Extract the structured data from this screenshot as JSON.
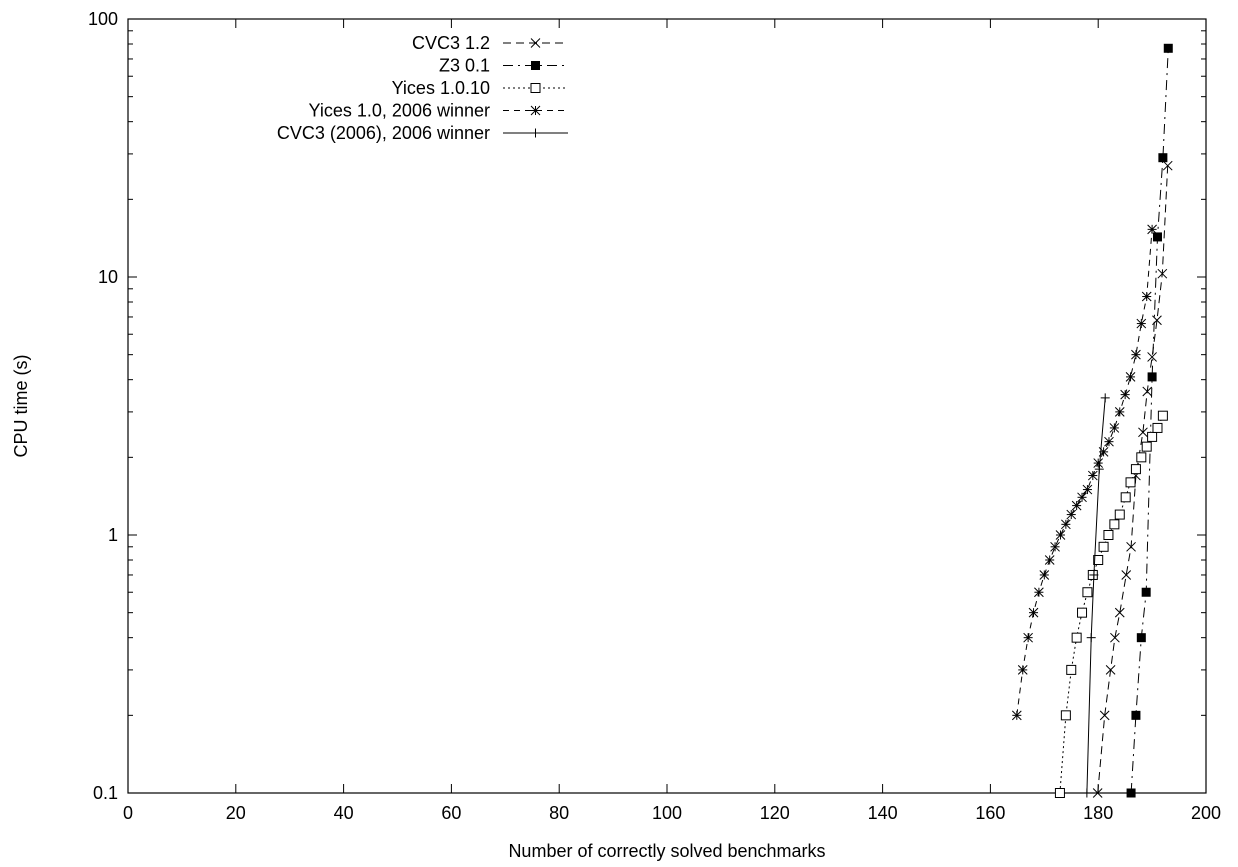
{
  "chart_data": {
    "type": "line",
    "title": "",
    "xlabel": "Number of correctly solved benchmarks",
    "ylabel": "CPU time (s)",
    "xlim": [
      0,
      200
    ],
    "ylim": [
      0.1,
      100
    ],
    "yscale": "log",
    "grid": false,
    "legend_position": "top-left",
    "x_ticks": [
      0,
      20,
      40,
      60,
      80,
      100,
      120,
      140,
      160,
      180,
      200
    ],
    "x_tick_labels": [
      "0",
      "20",
      "40",
      "60",
      "80",
      "100",
      "120",
      "140",
      "160",
      "180",
      "200"
    ],
    "y_ticks": [
      0.1,
      1,
      10,
      100
    ],
    "y_tick_labels": [
      "0.1",
      "1",
      "10",
      "100"
    ],
    "series": [
      {
        "name": "CVC3 1.2",
        "dash": "8,5",
        "marker": "x",
        "points": [
          [
            179.9,
            0.1
          ],
          [
            181.2,
            0.2
          ],
          [
            182.3,
            0.3
          ],
          [
            183.1,
            0.4
          ],
          [
            184.0,
            0.5
          ],
          [
            185.2,
            0.7
          ],
          [
            186.1,
            0.9
          ],
          [
            187.0,
            1.7
          ],
          [
            188.3,
            2.5
          ],
          [
            189.1,
            3.6
          ],
          [
            190.0,
            4.9
          ],
          [
            190.9,
            6.8
          ],
          [
            191.9,
            10.3
          ],
          [
            192.9,
            27.0
          ]
        ]
      },
      {
        "name": "Z3 0.1",
        "dash": "10,5,2,5",
        "marker": "filled-square",
        "points": [
          [
            186.1,
            0.1
          ],
          [
            187.0,
            0.2
          ],
          [
            188.0,
            0.4
          ],
          [
            188.9,
            0.6
          ],
          [
            190.0,
            4.1
          ],
          [
            191.0,
            14.3
          ],
          [
            192.0,
            29.0
          ],
          [
            193.0,
            77.0
          ]
        ]
      },
      {
        "name": "Yices 1.0.10",
        "dash": "2,3",
        "marker": "open-square",
        "points": [
          [
            172.9,
            0.1
          ],
          [
            174.0,
            0.2
          ],
          [
            175.0,
            0.3
          ],
          [
            176.0,
            0.4
          ],
          [
            177.0,
            0.5
          ],
          [
            178.0,
            0.6
          ],
          [
            179.0,
            0.7
          ],
          [
            180.0,
            0.8
          ],
          [
            181.0,
            0.9
          ],
          [
            181.9,
            1.0
          ],
          [
            183.0,
            1.1
          ],
          [
            184.0,
            1.2
          ],
          [
            185.1,
            1.4
          ],
          [
            186.0,
            1.6
          ],
          [
            187.0,
            1.8
          ],
          [
            188.0,
            2.0
          ],
          [
            189.0,
            2.2
          ],
          [
            190.0,
            2.4
          ],
          [
            191.0,
            2.6
          ],
          [
            192.0,
            2.9
          ]
        ]
      },
      {
        "name": "Yices 1.0, 2006 winner",
        "dash": "6,5",
        "marker": "star",
        "points": [
          [
            164.9,
            0.2
          ],
          [
            166.0,
            0.3
          ],
          [
            167.0,
            0.4
          ],
          [
            168.0,
            0.5
          ],
          [
            169.0,
            0.6
          ],
          [
            170.0,
            0.7
          ],
          [
            171.0,
            0.8
          ],
          [
            172.0,
            0.9
          ],
          [
            173.0,
            1.0
          ],
          [
            174.0,
            1.1
          ],
          [
            175.0,
            1.2
          ],
          [
            176.0,
            1.3
          ],
          [
            177.0,
            1.4
          ],
          [
            178.0,
            1.5
          ],
          [
            179.0,
            1.7
          ],
          [
            180.0,
            1.9
          ],
          [
            181.0,
            2.1
          ],
          [
            182.0,
            2.3
          ],
          [
            183.0,
            2.6
          ],
          [
            184.0,
            3.0
          ],
          [
            185.0,
            3.5
          ],
          [
            186.0,
            4.1
          ],
          [
            187.0,
            5.0
          ],
          [
            188.0,
            6.6
          ],
          [
            189.0,
            8.4
          ],
          [
            190.0,
            15.3
          ]
        ]
      },
      {
        "name": "CVC3 (2006), 2006 winner",
        "dash": "",
        "marker": "plus",
        "points": [
          [
            177.9,
            0.1
          ],
          [
            178.7,
            0.4
          ],
          [
            179.2,
            0.7
          ],
          [
            180.2,
            1.8
          ],
          [
            181.3,
            3.4
          ]
        ]
      }
    ]
  }
}
